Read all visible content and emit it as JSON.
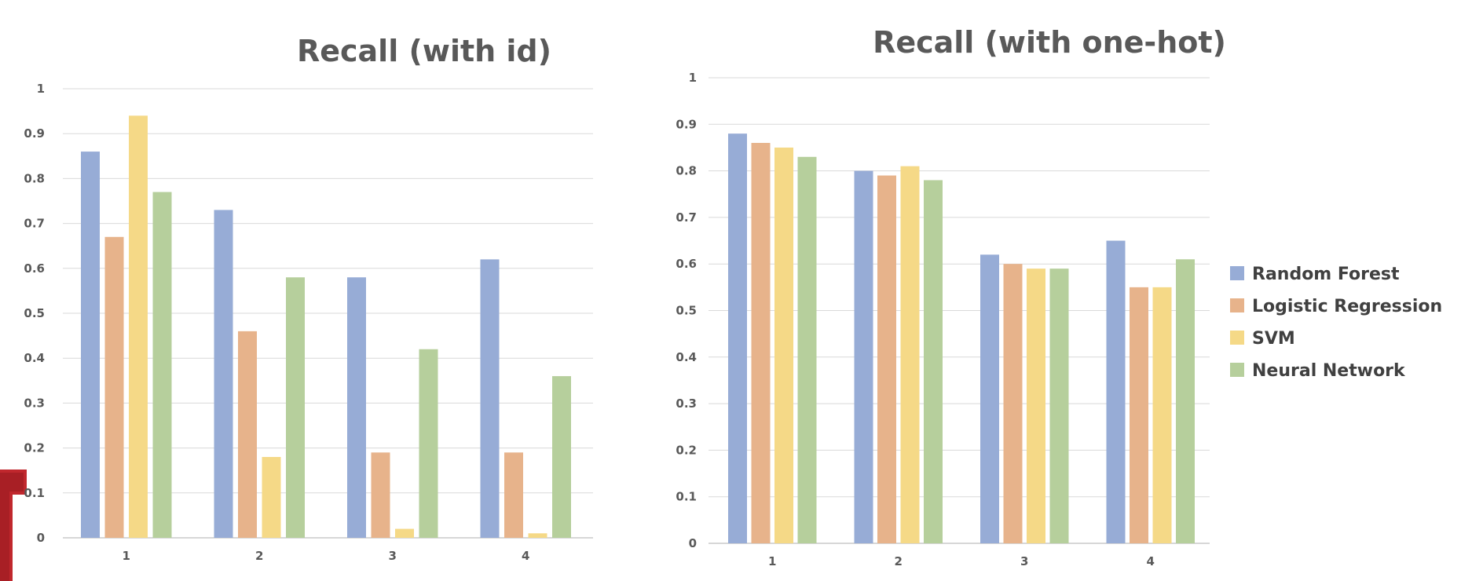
{
  "colors": {
    "series": [
      "#97acd6",
      "#e7b38b",
      "#f5d987",
      "#b6cf9c"
    ],
    "decor": "#c0272d"
  },
  "legend": {
    "placement": "right",
    "entries": [
      "Random Forest",
      "Logistic Regression",
      "SVM",
      "Neural Network"
    ]
  },
  "chart_data": [
    {
      "type": "bar",
      "title": "Recall (with id)",
      "xlabel": "",
      "ylabel": "",
      "categories": [
        "1",
        "2",
        "3",
        "4"
      ],
      "yticks": [
        "0",
        "0.1",
        "0.2",
        "0.3",
        "0.4",
        "0.5",
        "0.6",
        "0.7",
        "0.8",
        "0.9",
        "1"
      ],
      "ylim": [
        0,
        1
      ],
      "grid": true,
      "series": [
        {
          "name": "Random Forest",
          "values": [
            0.86,
            0.73,
            0.58,
            0.62
          ]
        },
        {
          "name": "Logistic Regression",
          "values": [
            0.67,
            0.46,
            0.19,
            0.19
          ]
        },
        {
          "name": "SVM",
          "values": [
            0.94,
            0.18,
            0.02,
            0.01
          ]
        },
        {
          "name": "Neural Network",
          "values": [
            0.77,
            0.58,
            0.42,
            0.36
          ]
        }
      ]
    },
    {
      "type": "bar",
      "title": "Recall (with one-hot)",
      "xlabel": "",
      "ylabel": "",
      "categories": [
        "1",
        "2",
        "3",
        "4"
      ],
      "yticks": [
        "0",
        "0.1",
        "0.2",
        "0.3",
        "0.4",
        "0.5",
        "0.6",
        "0.7",
        "0.8",
        "0.9",
        "1"
      ],
      "ylim": [
        0,
        1
      ],
      "grid": true,
      "series": [
        {
          "name": "Random Forest",
          "values": [
            0.88,
            0.8,
            0.62,
            0.65
          ]
        },
        {
          "name": "Logistic Regression",
          "values": [
            0.86,
            0.79,
            0.6,
            0.55
          ]
        },
        {
          "name": "SVM",
          "values": [
            0.85,
            0.81,
            0.59,
            0.55
          ]
        },
        {
          "name": "Neural Network",
          "values": [
            0.83,
            0.78,
            0.59,
            0.61
          ]
        }
      ]
    }
  ]
}
